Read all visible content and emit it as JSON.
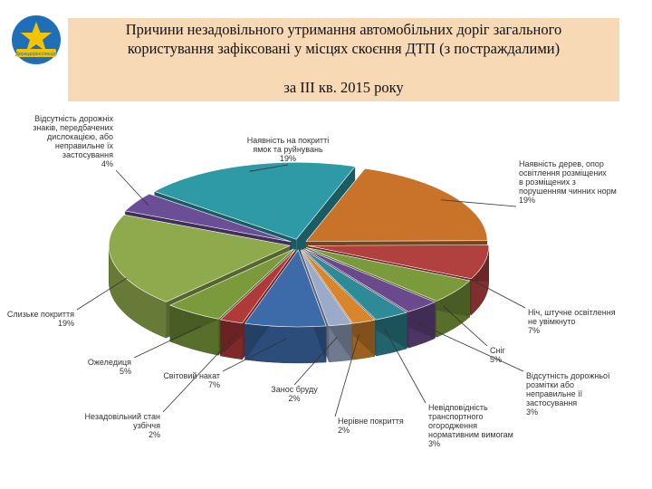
{
  "logo": {
    "icon": "star-icon",
    "text": "Держдорінспекція"
  },
  "header": {
    "title_line1": "Причини незадовільного утримання автомобільних доріг загального",
    "title_line2": "користування зафіксовані у місцях скоєння ДТП (з постраждалими)",
    "subtitle": "за ІІІ кв. 2015 року"
  },
  "chart_data": {
    "type": "pie",
    "style": "3d-exploded",
    "slices": [
      {
        "label": "Наявність на покритті ямок та руйнувань",
        "value": 19,
        "display": "19%",
        "color": "#2d9aa6"
      },
      {
        "label": "Наявність дерев, опор освітлення розміщених в розміщених з порушенням чинних норм",
        "value": 19,
        "display": "19%",
        "color": "#c8722a"
      },
      {
        "label": "Ніч, штучне освітлення не увімкнуто",
        "value": 7,
        "display": "7%",
        "color": "#b0413e"
      },
      {
        "label": "Сніг",
        "value": 5,
        "display": "5%",
        "color": "#7a9a3c"
      },
      {
        "label": "Відсутність дорожньої розмітки або неправильне її застосування",
        "value": 3,
        "display": "3%",
        "color": "#6a4a8c"
      },
      {
        "label": "Невідповідність транспортного огородження нормативним вимогам",
        "value": 3,
        "display": "3%",
        "color": "#2f8a98"
      },
      {
        "label": "Нерівне покриття",
        "value": 2,
        "display": "2%",
        "color": "#d9852b"
      },
      {
        "label": "Занос бруду",
        "value": 2,
        "display": "2%",
        "color": "#9aaac8"
      },
      {
        "label": "Світовий накат",
        "value": 7,
        "display": "7%",
        "color": "#3d6aa8"
      },
      {
        "label": "Незадовільний стан узбіччя",
        "value": 2,
        "display": "2%",
        "color": "#b03a3a"
      },
      {
        "label": "Ожеледиця",
        "value": 5,
        "display": "5%",
        "color": "#7a9a3c"
      },
      {
        "label": "Слизьке покриття",
        "value": 19,
        "display": "19%",
        "color": "#8faa4c"
      },
      {
        "label": "Відсутність дорожніх знаків, передбачених дислокацією, або неправильне їх застосування",
        "value": 4,
        "display": "4%",
        "color": "#6a4f96"
      }
    ]
  }
}
